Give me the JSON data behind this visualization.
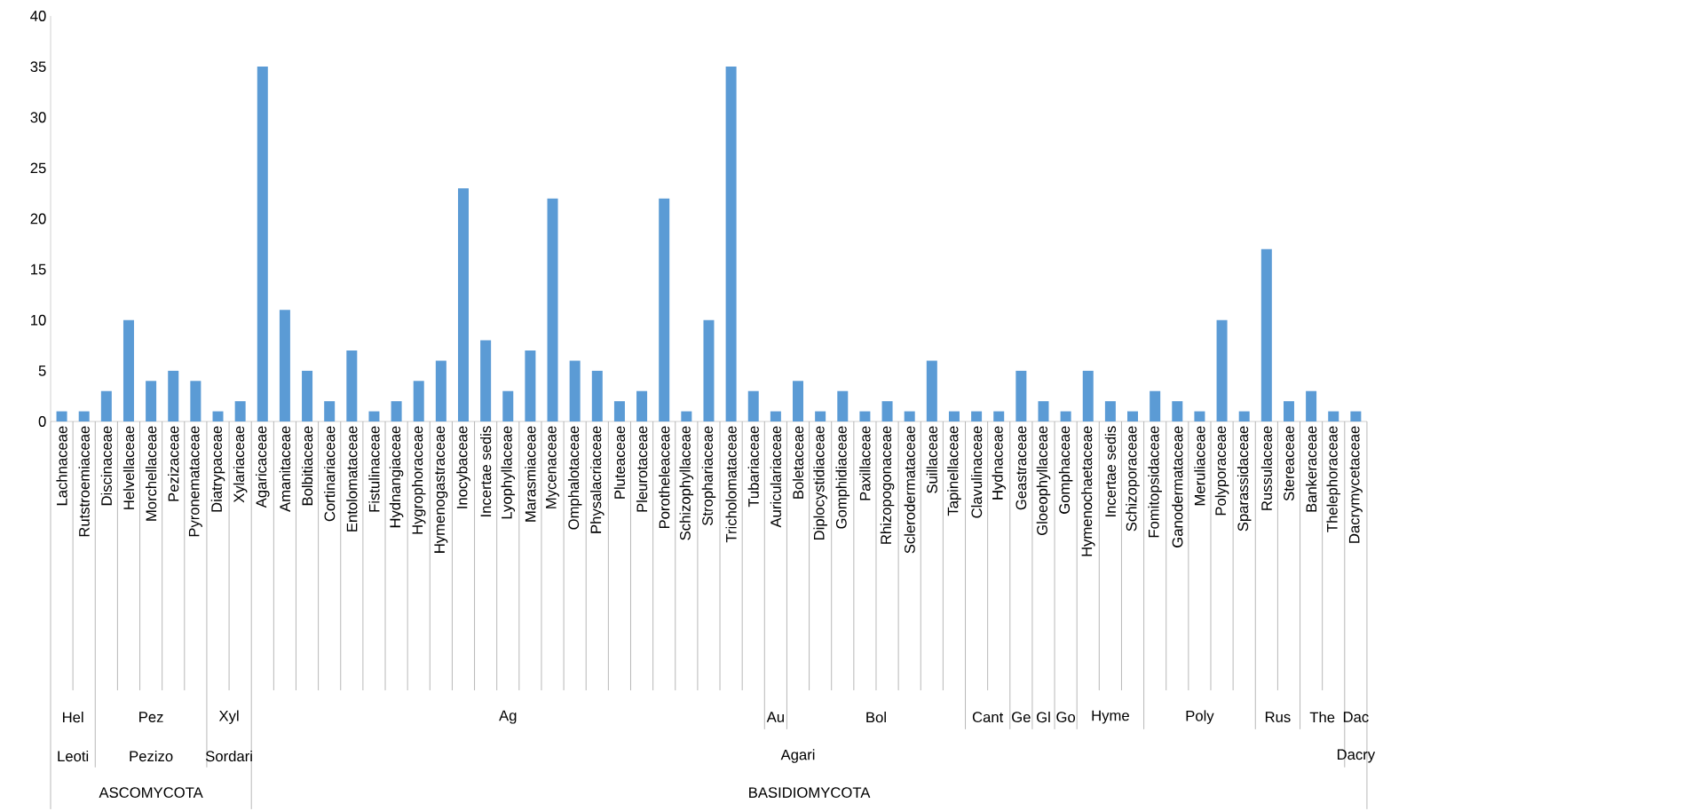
{
  "chart_data": {
    "type": "bar",
    "categories": [
      "Lachnaceae",
      "Rutstroemiaceae",
      "Discinaceae",
      "Helvellaceae",
      "Morchellaceae",
      "Pezizaceae",
      "Pyronemataceae",
      "Diatrypaceae",
      "Xylariaceae",
      "Agaricaceae",
      "Amanitaceae",
      "Bolbitiaceae",
      "Cortinariaceae",
      "Entolomataceae",
      "Fistulinaceae",
      "Hydnangiaceae",
      "Hygrophoraceae",
      "Hymenogastraceae",
      "Inocybaceae",
      "Incertae sedis",
      "Lyophyllaceae",
      "Marasmiaceae",
      "Mycenaceae",
      "Omphalotaceae",
      "Physalacriaceae",
      "Pluteaceae",
      "Pleurotaceae",
      "Porotheleaceae",
      "Schizophyllaceae",
      "Strophariaceae",
      "Tricholomataceae",
      "Tubariaceae",
      "Auriculariaceae",
      "Boletaceae",
      "Diplocystidiaceae",
      "Gomphidiaceae",
      "Paxillaceae",
      "Rhizopogonaceae",
      "Sclerodermataceae",
      "Suillaceae",
      "Tapinellaceae",
      "Clavulinaceae",
      "Hydnaceae",
      "Geastraceae",
      "Gloeophyllaceae",
      "Gomphaceae",
      "Hymenochaetaceae",
      "Incertae sedis",
      "Schizoporaceae",
      "Fomitopsidaceae",
      "Ganodermataceae",
      "Meruliaceae",
      "Polyporaceae",
      "Sparassidaceae",
      "Russulaceae",
      "Stereaceae",
      "Bankeraceae",
      "Thelephoraceae",
      "Dacrymycetaceae"
    ],
    "values": [
      1,
      1,
      3,
      10,
      4,
      5,
      4,
      1,
      2,
      35,
      11,
      5,
      2,
      7,
      1,
      2,
      4,
      6,
      23,
      8,
      3,
      7,
      22,
      6,
      5,
      2,
      3,
      22,
      1,
      10,
      35,
      3,
      1,
      4,
      1,
      3,
      1,
      2,
      1,
      6,
      1,
      1,
      1,
      5,
      2,
      1,
      5,
      2,
      1,
      3,
      2,
      1,
      10,
      1,
      17,
      2,
      3,
      1,
      1
    ],
    "color": "#5b9bd5",
    "ylim": [
      0,
      40
    ],
    "yticks": [
      0,
      5,
      10,
      15,
      20,
      25,
      30,
      35,
      40
    ],
    "annotations": [
      "Hel",
      "Pez",
      "Xyl",
      "Ag",
      "Au",
      "Bol",
      "Cant",
      "Ge",
      "Gl",
      "Go",
      "Hyme",
      "Poly",
      "Rus",
      "The",
      "Dac",
      "Leoti",
      "Pezizo",
      "Sordari",
      "Agari",
      "Dacry",
      "ASCOMYCOTA",
      "BASIDIOMYCOTA"
    ]
  }
}
